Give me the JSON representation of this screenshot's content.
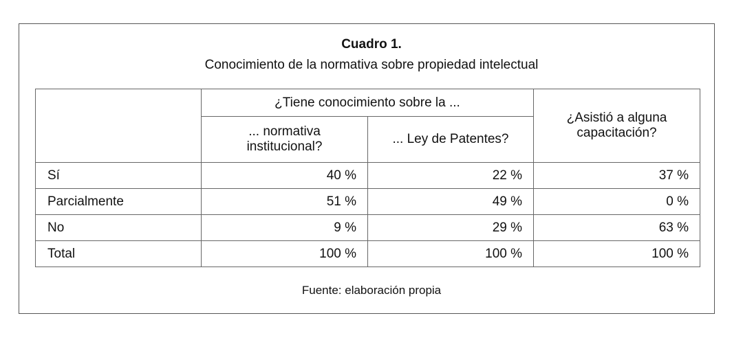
{
  "caption": {
    "title": "Cuadro 1.",
    "subtitle": "Conocimiento de la normativa sobre propiedad intelectual"
  },
  "table": {
    "group_header": "¿Tiene conocimiento sobre la ...",
    "sub_headers": [
      "... normativa institucional?",
      "... Ley de Patentes?"
    ],
    "side_header": "¿Asistió a alguna capacitación?",
    "rows": [
      {
        "label": "Sí",
        "values": [
          "40 %",
          "22 %",
          "37 %"
        ]
      },
      {
        "label": "Parcialmente",
        "values": [
          "51 %",
          "49 %",
          "0 %"
        ]
      },
      {
        "label": "No",
        "values": [
          "9 %",
          "29 %",
          "63 %"
        ]
      },
      {
        "label": "Total",
        "values": [
          "100 %",
          "100 %",
          "100 %"
        ]
      }
    ]
  },
  "source": "Fuente: elaboración propia"
}
